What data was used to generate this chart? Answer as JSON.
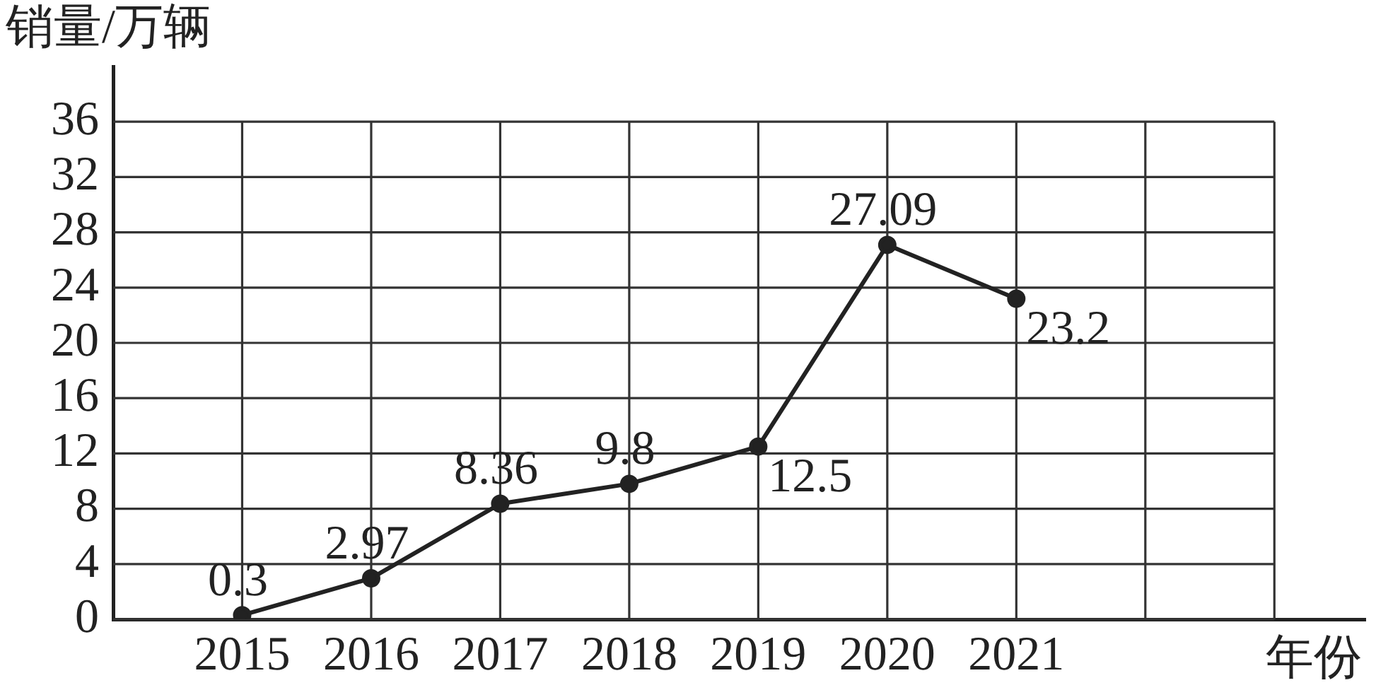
{
  "chart_data": {
    "type": "line",
    "xlabel": "年份",
    "ylabel": "销量/万辆",
    "x": [
      2015,
      2016,
      2017,
      2018,
      2019,
      2020,
      2021
    ],
    "values": [
      0.3,
      2.97,
      8.36,
      9.8,
      12.5,
      27.09,
      23.2
    ],
    "color": "#222222",
    "xlim": [
      2014,
      2023.7
    ],
    "xticks": [
      2015,
      2016,
      2017,
      2018,
      2019,
      2020,
      2021,
      {
        "value": 2022,
        "label": null
      },
      {
        "value": 2023,
        "label": null
      }
    ],
    "ylim": [
      0,
      40
    ],
    "yticks": [
      0,
      4,
      8,
      12,
      16,
      20,
      24,
      28,
      32,
      36
    ],
    "grid": true,
    "marker": "circle",
    "data_labels": true
  }
}
